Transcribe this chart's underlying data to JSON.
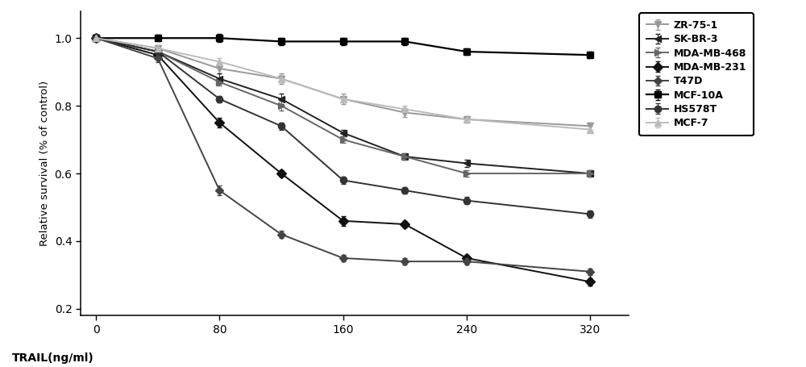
{
  "x_positions": [
    0,
    40,
    80,
    120,
    160,
    200,
    240,
    320
  ],
  "x_labels_map": {
    "0": "0",
    "80": "80",
    "160": "160",
    "240": "240",
    "320": "320"
  },
  "xticks_pos": [
    0,
    80,
    160,
    240,
    320
  ],
  "series": {
    "ZR-75-1": {
      "color": "#999999",
      "marker": "v",
      "markersize": 6,
      "linewidth": 1.4,
      "values": [
        1.0,
        0.97,
        0.91,
        0.88,
        0.82,
        0.78,
        0.76,
        0.74
      ]
    },
    "SK-BR-3": {
      "color": "#222222",
      "marker": "<",
      "markersize": 6,
      "linewidth": 1.4,
      "values": [
        1.0,
        0.96,
        0.88,
        0.82,
        0.72,
        0.65,
        0.63,
        0.6
      ]
    },
    "MDA-MB-468": {
      "color": "#666666",
      "marker": ">",
      "markersize": 6,
      "linewidth": 1.4,
      "values": [
        1.0,
        0.96,
        0.87,
        0.8,
        0.7,
        0.65,
        0.6,
        0.6
      ]
    },
    "MDA-MB-231": {
      "color": "#111111",
      "marker": "D",
      "markersize": 6,
      "linewidth": 1.4,
      "values": [
        1.0,
        0.95,
        0.75,
        0.6,
        0.46,
        0.45,
        0.35,
        0.28
      ]
    },
    "T47D": {
      "color": "#444444",
      "marker": "D",
      "markersize": 5,
      "linewidth": 1.4,
      "values": [
        1.0,
        0.94,
        0.55,
        0.42,
        0.35,
        0.34,
        0.34,
        0.31
      ]
    },
    "MCF-10A": {
      "color": "#000000",
      "marker": "s",
      "markersize": 6,
      "linewidth": 1.6,
      "values": [
        1.0,
        1.0,
        1.0,
        0.99,
        0.99,
        0.99,
        0.96,
        0.95
      ]
    },
    "HS578T": {
      "color": "#333333",
      "marker": "o",
      "markersize": 6,
      "linewidth": 1.4,
      "values": [
        1.0,
        0.96,
        0.82,
        0.74,
        0.58,
        0.55,
        0.52,
        0.48
      ]
    },
    "MCF-7": {
      "color": "#bbbbbb",
      "marker": "^",
      "markersize": 6,
      "linewidth": 1.4,
      "values": [
        1.0,
        0.97,
        0.93,
        0.88,
        0.82,
        0.79,
        0.76,
        0.73
      ]
    }
  },
  "error_bars": {
    "ZR-75-1": [
      0.01,
      0.01,
      0.015,
      0.015,
      0.015,
      0.012,
      0.01,
      0.01
    ],
    "SK-BR-3": [
      0.01,
      0.01,
      0.015,
      0.015,
      0.01,
      0.01,
      0.01,
      0.01
    ],
    "MDA-MB-468": [
      0.01,
      0.01,
      0.01,
      0.015,
      0.01,
      0.01,
      0.01,
      0.01
    ],
    "MDA-MB-231": [
      0.01,
      0.01,
      0.015,
      0.01,
      0.015,
      0.01,
      0.01,
      0.01
    ],
    "T47D": [
      0.01,
      0.01,
      0.015,
      0.01,
      0.01,
      0.01,
      0.01,
      0.01
    ],
    "MCF-10A": [
      0.01,
      0.01,
      0.012,
      0.01,
      0.01,
      0.01,
      0.01,
      0.01
    ],
    "HS578T": [
      0.01,
      0.01,
      0.01,
      0.01,
      0.01,
      0.01,
      0.01,
      0.01
    ],
    "MCF-7": [
      0.01,
      0.01,
      0.01,
      0.01,
      0.01,
      0.01,
      0.01,
      0.01
    ]
  },
  "xlabel": "TRAIL(ng/ml)",
  "ylabel": "Relative survival (% of control)",
  "xlim": [
    -10,
    345
  ],
  "ylim": [
    0.18,
    1.08
  ],
  "yticks": [
    0.2,
    0.4,
    0.6,
    0.8,
    1.0
  ],
  "legend_order": [
    "ZR-75-1",
    "SK-BR-3",
    "MDA-MB-468",
    "MDA-MB-231",
    "T47D",
    "MCF-10A",
    "HS578T",
    "MCF-7"
  ]
}
